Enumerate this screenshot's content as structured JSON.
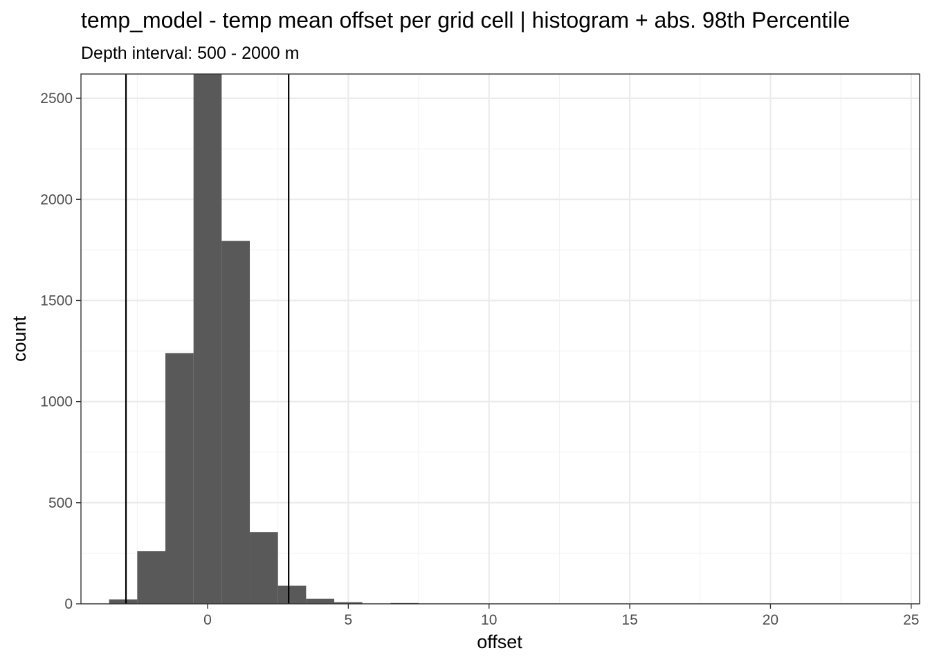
{
  "chart_data": {
    "type": "histogram",
    "title": "temp_model  -  temp mean offset per grid cell | histogram + abs. 98th Percentile",
    "subtitle": "Depth interval: 500 - 2000 m",
    "xlabel": "offset",
    "ylabel": "count",
    "xlim": [
      -4.5,
      25.3
    ],
    "ylim": [
      0,
      2620
    ],
    "x_ticks": [
      0,
      5,
      10,
      15,
      20,
      25
    ],
    "y_ticks": [
      0,
      500,
      1000,
      1500,
      2000,
      2500
    ],
    "bin_width": 1,
    "bins": [
      {
        "x0": -3.5,
        "x1": -2.5,
        "count": 22
      },
      {
        "x0": -2.5,
        "x1": -1.5,
        "count": 260
      },
      {
        "x0": -1.5,
        "x1": -0.5,
        "count": 1240
      },
      {
        "x0": -0.5,
        "x1": 0.5,
        "count": 2620
      },
      {
        "x0": 0.5,
        "x1": 1.5,
        "count": 1795
      },
      {
        "x0": 1.5,
        "x1": 2.5,
        "count": 355
      },
      {
        "x0": 2.5,
        "x1": 3.5,
        "count": 90
      },
      {
        "x0": 3.5,
        "x1": 4.5,
        "count": 25
      },
      {
        "x0": 4.5,
        "x1": 5.5,
        "count": 8
      },
      {
        "x0": 5.5,
        "x1": 6.5,
        "count": 0
      },
      {
        "x0": 6.5,
        "x1": 7.5,
        "count": 4
      }
    ],
    "percentile_lines": [
      -2.9,
      2.88
    ],
    "grid": true,
    "colors": {
      "bar": "#595959",
      "lines": "#000000",
      "grid": "#ebebeb"
    }
  }
}
